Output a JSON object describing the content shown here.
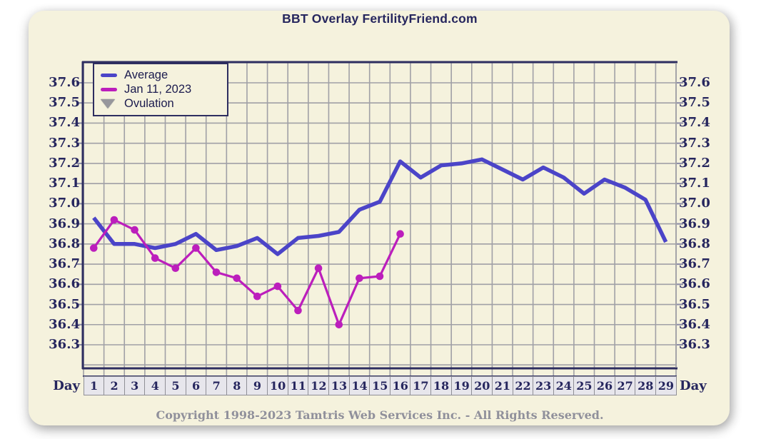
{
  "header": {
    "title": "BBT Overlay FertilityFriend.com"
  },
  "legend": {
    "items": [
      {
        "label": "Average",
        "swatch": "line",
        "color": "#4b44c8"
      },
      {
        "label": "Jan 11, 2023",
        "swatch": "line",
        "color": "#bc1ebc"
      },
      {
        "label": "Ovulation",
        "swatch": "triangle-down",
        "color": "#97979c"
      }
    ]
  },
  "axes": {
    "x_title": "Day",
    "x_ticks": [
      "1",
      "2",
      "3",
      "4",
      "5",
      "6",
      "7",
      "8",
      "9",
      "10",
      "11",
      "12",
      "13",
      "14",
      "15",
      "16",
      "17",
      "18",
      "19",
      "20",
      "21",
      "22",
      "23",
      "24",
      "25",
      "26",
      "27",
      "28",
      "29"
    ],
    "y_ticks_display": [
      "37.6",
      "37.5",
      "37.4",
      "37.3",
      "37.2",
      "37.1",
      "37.0",
      "36.9",
      "36.8",
      "36.7",
      "36.6",
      "36.5",
      "36.4",
      "36.3"
    ]
  },
  "footer": {
    "copyright": "Copyright 1998-2023 Tamtris Web Services Inc. - All Rights Reserved."
  },
  "colors": {
    "card_background": "#f5f2dd",
    "grid": "#a0a0a6",
    "frame": "#2e2e60",
    "text_navy": "#26265e",
    "average_line": "#4b44c8",
    "overlay_line": "#bc1ebc",
    "ovulation_marker": "#97979c",
    "day_cell_background": "#e7e6ec",
    "copyright_text": "#90909b"
  },
  "chart_data": {
    "type": "line",
    "title": "BBT Overlay FertilityFriend.com",
    "xlabel": "Day",
    "ylabel": "",
    "x": [
      1,
      2,
      3,
      4,
      5,
      6,
      7,
      8,
      9,
      10,
      11,
      12,
      13,
      14,
      15,
      16,
      17,
      18,
      19,
      20,
      21,
      22,
      23,
      24,
      25,
      26,
      27,
      28,
      29
    ],
    "ylim": [
      36.2,
      37.7
    ],
    "ytick_step": 0.1,
    "ytick_labeled_range": [
      36.3,
      37.6
    ],
    "grid": true,
    "legend_position": "top-left",
    "series": [
      {
        "name": "Average",
        "color": "#4b44c8",
        "style": "thick-line",
        "marker": "none",
        "values": [
          36.93,
          36.8,
          36.8,
          36.78,
          36.8,
          36.85,
          36.77,
          36.79,
          36.83,
          36.75,
          36.83,
          36.84,
          36.86,
          36.97,
          37.01,
          37.21,
          37.13,
          37.19,
          37.2,
          37.22,
          37.17,
          37.12,
          37.18,
          37.13,
          37.05,
          37.12,
          37.08,
          37.02,
          36.81
        ]
      },
      {
        "name": "Jan 11, 2023",
        "color": "#bc1ebc",
        "style": "line-with-dots",
        "marker": "circle",
        "values": [
          36.78,
          36.92,
          36.87,
          36.73,
          36.68,
          36.78,
          36.66,
          36.63,
          36.54,
          36.59,
          36.47,
          36.68,
          36.4,
          36.63,
          36.64,
          36.85
        ]
      },
      {
        "name": "Ovulation",
        "color": "#97979c",
        "style": "marker-only",
        "marker": "triangle-down",
        "values": []
      }
    ]
  }
}
